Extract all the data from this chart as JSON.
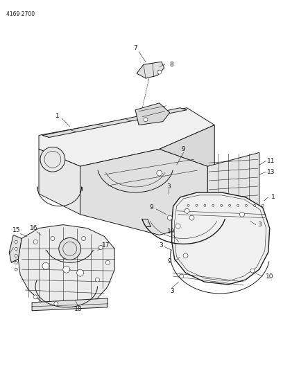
{
  "part_number": "4169 2700",
  "background_color": "#ffffff",
  "line_color": "#1a1a1a",
  "figsize": [
    4.08,
    5.33
  ],
  "dpi": 100,
  "lw_main": 0.7,
  "lw_thin": 0.4,
  "lw_thick": 1.0,
  "label_fontsize": 6.5,
  "part_number_fontsize": 5.5
}
